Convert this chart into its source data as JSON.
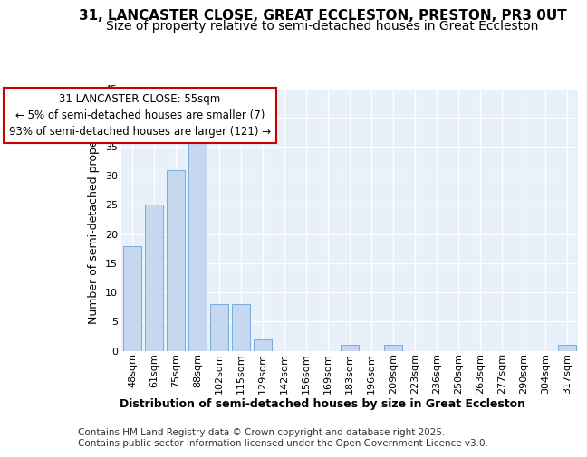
{
  "title": "31, LANCASTER CLOSE, GREAT ECCLESTON, PRESTON, PR3 0UT",
  "subtitle": "Size of property relative to semi-detached houses in Great Eccleston",
  "xlabel": "Distribution of semi-detached houses by size in Great Eccleston",
  "ylabel": "Number of semi-detached properties",
  "categories": [
    "48sqm",
    "61sqm",
    "75sqm",
    "88sqm",
    "102sqm",
    "115sqm",
    "129sqm",
    "142sqm",
    "156sqm",
    "169sqm",
    "183sqm",
    "196sqm",
    "209sqm",
    "223sqm",
    "236sqm",
    "250sqm",
    "263sqm",
    "277sqm",
    "290sqm",
    "304sqm",
    "317sqm"
  ],
  "values": [
    18,
    25,
    31,
    36,
    8,
    8,
    2,
    0,
    0,
    0,
    1,
    0,
    1,
    0,
    0,
    0,
    0,
    0,
    0,
    0,
    1
  ],
  "bar_color": "#c5d8f0",
  "bar_edge_color": "#7aabda",
  "annotation_title": "31 LANCASTER CLOSE: 55sqm",
  "annotation_line1": "← 5% of semi-detached houses are smaller (7)",
  "annotation_line2": "93% of semi-detached houses are larger (121) →",
  "annotation_box_edge": "#cc0000",
  "ylim": [
    0,
    45
  ],
  "yticks": [
    0,
    5,
    10,
    15,
    20,
    25,
    30,
    35,
    40,
    45
  ],
  "footer_line1": "Contains HM Land Registry data © Crown copyright and database right 2025.",
  "footer_line2": "Contains public sector information licensed under the Open Government Licence v3.0.",
  "bg_color": "#ffffff",
  "plot_bg_color": "#e8f0fa",
  "grid_color": "#ffffff",
  "title_fontsize": 11,
  "subtitle_fontsize": 10,
  "axis_label_fontsize": 9,
  "tick_fontsize": 8,
  "annotation_fontsize": 8.5,
  "footer_fontsize": 7.5
}
